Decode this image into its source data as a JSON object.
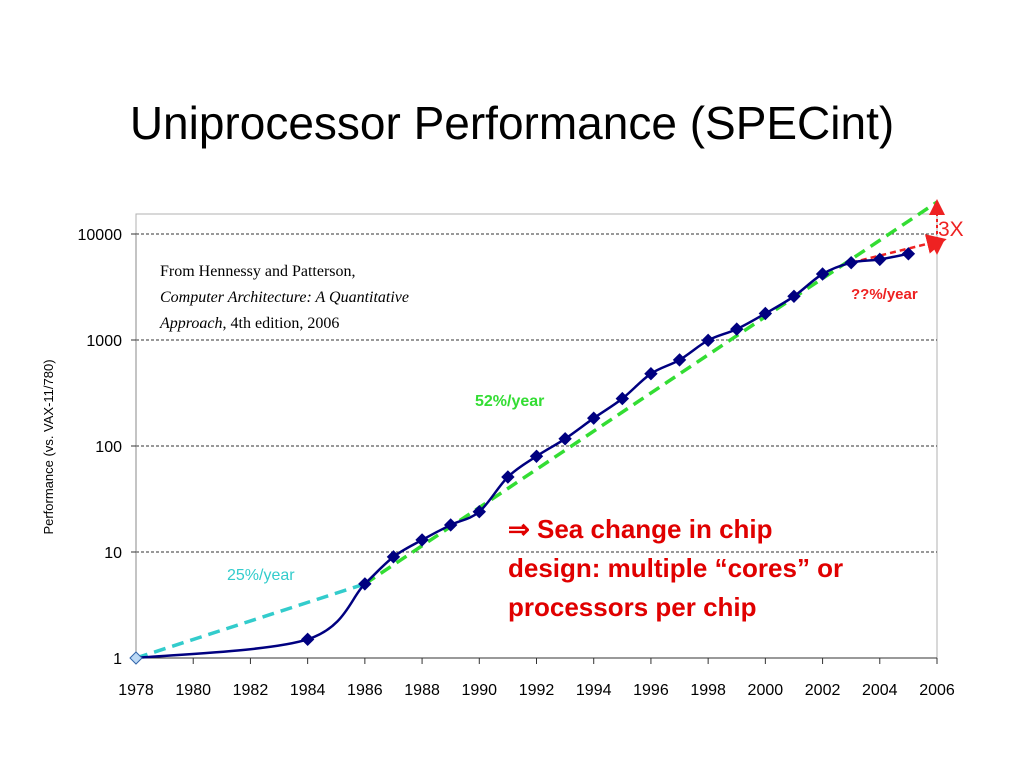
{
  "slide": {
    "title": "Uniprocessor Performance (SPECint)"
  },
  "chart_data": {
    "type": "line",
    "ylabel": "Performance (vs. VAX-11/780)",
    "xlim": [
      1978,
      2006
    ],
    "ylim": [
      1,
      10000
    ],
    "yscale": "log",
    "grid": "horizontal dashed",
    "x_ticks": [
      "1978",
      "1980",
      "1982",
      "1984",
      "1986",
      "1988",
      "1990",
      "1992",
      "1994",
      "1996",
      "1998",
      "2000",
      "2002",
      "2004",
      "2006"
    ],
    "y_ticks": [
      "1",
      "10",
      "100",
      "1000",
      "10000"
    ],
    "series": [
      {
        "color": "#000080",
        "x": [
          1978,
          1984,
          1986,
          1987,
          1988,
          1989,
          1990,
          1991,
          1992,
          1993,
          1994,
          1995,
          1996,
          1997,
          1998,
          1999,
          2000,
          2001,
          2002,
          2003,
          2004,
          2005
        ],
        "y": [
          1,
          1.5,
          5,
          9,
          13,
          18,
          24,
          51,
          80,
          117,
          183,
          280,
          481,
          649,
          993,
          1267,
          1779,
          2584,
          4195,
          5364,
          5764,
          6505
        ]
      }
    ],
    "trend_lines": [
      {
        "label": "25%/year",
        "color": "#33cccc",
        "x": [
          1978,
          1986
        ],
        "y": [
          1,
          5
        ]
      },
      {
        "label": "52%/year",
        "color": "#33dd33",
        "x": [
          1986,
          2006
        ],
        "y": [
          5,
          20000
        ]
      },
      {
        "label": "??%/year",
        "color": "#ee2222",
        "x": [
          2003,
          2006
        ],
        "y": [
          5364,
          8500
        ]
      }
    ],
    "annotations": {
      "gap_label": "3X",
      "citation": [
        "From Hennessy and Patterson,",
        "Computer Architecture: A Quantitative",
        "Approach",
        ", 4th edition, 2006"
      ],
      "note": [
        "⇒ Sea change in chip",
        "design: multiple “cores” or",
        "processors per chip"
      ]
    },
    "colors": {
      "data_line": "#000080",
      "markers": "#000080",
      "gap_label": "#ee2222",
      "note": "#e00000"
    }
  }
}
